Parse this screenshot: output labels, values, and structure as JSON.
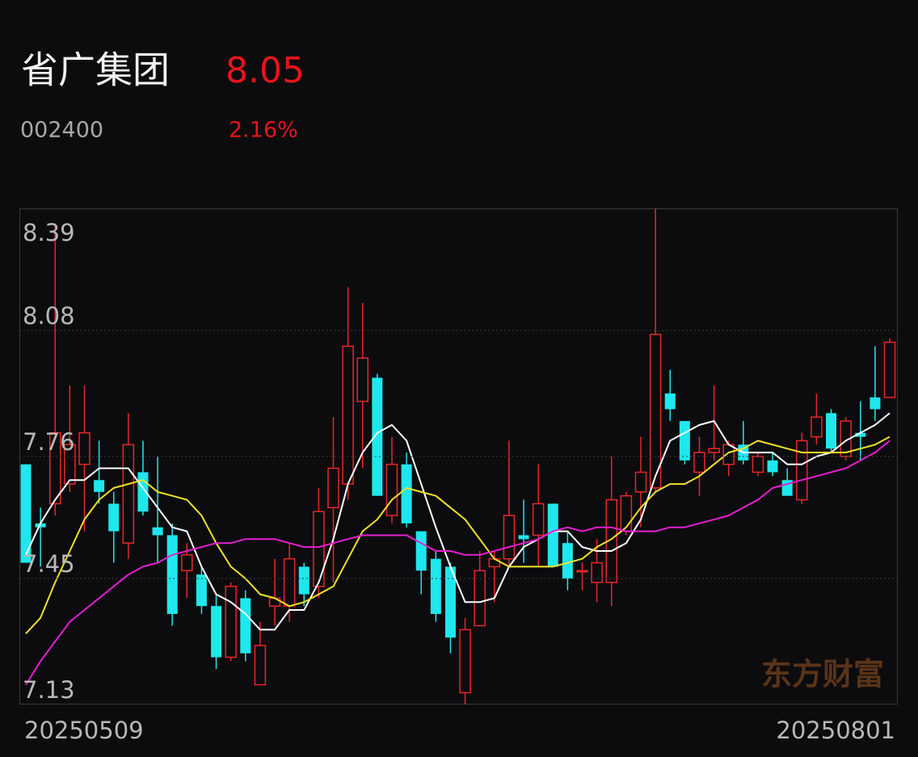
{
  "header": {
    "name": "省广集团",
    "price": "8.05",
    "code": "002400",
    "change": "2.16%"
  },
  "chart_data": {
    "type": "candlestick",
    "categories": [
      "20250509",
      null,
      null,
      null,
      null,
      null,
      null,
      null,
      null,
      null,
      null,
      null,
      null,
      null,
      null,
      null,
      null,
      null,
      null,
      null,
      null,
      null,
      null,
      null,
      null,
      null,
      null,
      null,
      null,
      null,
      null,
      null,
      null,
      null,
      null,
      null,
      null,
      null,
      null,
      null,
      null,
      null,
      null,
      null,
      null,
      null,
      null,
      null,
      null,
      null,
      null,
      null,
      null,
      null,
      null,
      null,
      null,
      null,
      null,
      "20250801"
    ],
    "open": [
      7.74,
      7.59,
      7.64,
      7.69,
      7.74,
      7.7,
      7.64,
      7.54,
      7.72,
      7.58,
      7.56,
      7.47,
      7.46,
      7.38,
      7.25,
      7.4,
      7.18,
      7.38,
      7.38,
      7.48,
      7.43,
      7.63,
      7.69,
      7.9,
      7.96,
      7.61,
      7.74,
      7.57,
      7.5,
      7.48,
      7.16,
      7.33,
      7.48,
      7.5,
      7.56,
      7.56,
      7.64,
      7.54,
      7.47,
      7.44,
      7.44,
      7.57,
      7.67,
      7.68,
      7.92,
      7.85,
      7.72,
      7.77,
      7.74,
      7.79,
      7.72,
      7.75,
      7.7,
      7.65,
      7.81,
      7.87,
      7.76,
      7.82,
      7.91,
      7.91
    ],
    "high": [
      7.74,
      7.63,
      8.35,
      7.94,
      7.94,
      7.8,
      7.67,
      7.87,
      7.8,
      7.76,
      7.59,
      7.54,
      7.48,
      7.41,
      7.44,
      7.42,
      7.34,
      7.5,
      7.54,
      7.49,
      7.68,
      7.86,
      8.19,
      8.15,
      7.97,
      7.81,
      7.77,
      7.57,
      7.52,
      7.49,
      7.35,
      7.52,
      7.52,
      7.8,
      7.65,
      7.74,
      7.64,
      7.57,
      7.49,
      7.55,
      7.76,
      7.67,
      7.81,
      8.39,
      7.98,
      7.85,
      7.81,
      7.94,
      7.8,
      7.85,
      7.77,
      7.77,
      7.73,
      7.82,
      7.92,
      7.88,
      7.86,
      7.9,
      8.04,
      8.06
    ],
    "low": [
      7.49,
      7.48,
      7.61,
      7.67,
      7.57,
      7.64,
      7.49,
      7.5,
      7.61,
      7.49,
      7.33,
      7.4,
      7.36,
      7.22,
      7.24,
      7.24,
      7.18,
      7.33,
      7.34,
      7.38,
      7.4,
      7.44,
      7.65,
      7.73,
      7.66,
      7.59,
      7.58,
      7.41,
      7.34,
      7.26,
      7.13,
      7.33,
      7.39,
      7.48,
      7.49,
      7.48,
      7.48,
      7.42,
      7.42,
      7.39,
      7.38,
      7.56,
      7.58,
      7.67,
      7.85,
      7.74,
      7.66,
      7.75,
      7.71,
      7.74,
      7.71,
      7.71,
      7.66,
      7.64,
      7.79,
      7.77,
      7.75,
      7.75,
      7.85,
      7.91
    ],
    "close": [
      7.49,
      7.58,
      7.82,
      7.79,
      7.82,
      7.67,
      7.57,
      7.79,
      7.62,
      7.56,
      7.36,
      7.51,
      7.38,
      7.25,
      7.43,
      7.26,
      7.28,
      7.4,
      7.5,
      7.41,
      7.62,
      7.73,
      8.04,
      8.01,
      7.66,
      7.74,
      7.59,
      7.47,
      7.36,
      7.3,
      7.32,
      7.47,
      7.5,
      7.61,
      7.55,
      7.64,
      7.48,
      7.45,
      7.47,
      7.49,
      7.65,
      7.66,
      7.72,
      8.07,
      7.88,
      7.75,
      7.77,
      7.78,
      7.79,
      7.75,
      7.76,
      7.72,
      7.66,
      7.8,
      7.86,
      7.78,
      7.85,
      7.81,
      7.88,
      8.05
    ],
    "up_color": "#e8262a",
    "down_color": "#1ee8ee",
    "series": [
      {
        "color": "#ffffff",
        "values": [
          7.51,
          7.59,
          7.65,
          7.7,
          7.7,
          7.73,
          7.73,
          7.73,
          7.68,
          7.63,
          7.58,
          7.57,
          7.48,
          7.41,
          7.39,
          7.36,
          7.32,
          7.32,
          7.37,
          7.37,
          7.44,
          7.55,
          7.69,
          7.77,
          7.82,
          7.84,
          7.8,
          7.69,
          7.58,
          7.48,
          7.39,
          7.39,
          7.4,
          7.48,
          7.53,
          7.55,
          7.57,
          7.57,
          7.53,
          7.52,
          7.52,
          7.54,
          7.6,
          7.71,
          7.8,
          7.82,
          7.84,
          7.85,
          7.79,
          7.77,
          7.77,
          7.77,
          7.74,
          7.74,
          7.76,
          7.77,
          7.8,
          7.82,
          7.84,
          7.87
        ]
      },
      {
        "color": "#f2e02a",
        "values": [
          7.31,
          7.35,
          7.44,
          7.52,
          7.6,
          7.65,
          7.68,
          7.69,
          7.7,
          7.67,
          7.66,
          7.65,
          7.61,
          7.54,
          7.48,
          7.45,
          7.41,
          7.4,
          7.38,
          7.39,
          7.41,
          7.43,
          7.5,
          7.57,
          7.6,
          7.65,
          7.68,
          7.67,
          7.66,
          7.63,
          7.6,
          7.55,
          7.5,
          7.48,
          7.48,
          7.48,
          7.48,
          7.49,
          7.5,
          7.53,
          7.55,
          7.58,
          7.63,
          7.67,
          7.69,
          7.69,
          7.71,
          7.74,
          7.77,
          7.78,
          7.8,
          7.79,
          7.78,
          7.77,
          7.77,
          7.77,
          7.77,
          7.78,
          7.79,
          7.81
        ]
      },
      {
        "color": "#e61ed2",
        "values": [
          7.18,
          7.24,
          7.29,
          7.34,
          7.37,
          7.4,
          7.43,
          7.46,
          7.48,
          7.49,
          7.51,
          7.52,
          7.53,
          7.54,
          7.54,
          7.55,
          7.55,
          7.55,
          7.54,
          7.53,
          7.53,
          7.54,
          7.55,
          7.56,
          7.56,
          7.56,
          7.56,
          7.54,
          7.52,
          7.52,
          7.51,
          7.51,
          7.52,
          7.53,
          7.54,
          7.55,
          7.57,
          7.58,
          7.57,
          7.58,
          7.58,
          7.57,
          7.57,
          7.57,
          7.58,
          7.58,
          7.59,
          7.6,
          7.61,
          7.63,
          7.65,
          7.68,
          7.69,
          7.7,
          7.71,
          7.72,
          7.73,
          7.75,
          7.77,
          7.8
        ]
      }
    ],
    "ylim": [
      7.13,
      8.39
    ],
    "yticks": [
      8.39,
      8.08,
      7.76,
      7.45,
      7.13
    ],
    "grid": true,
    "watermark": "东方财富"
  }
}
